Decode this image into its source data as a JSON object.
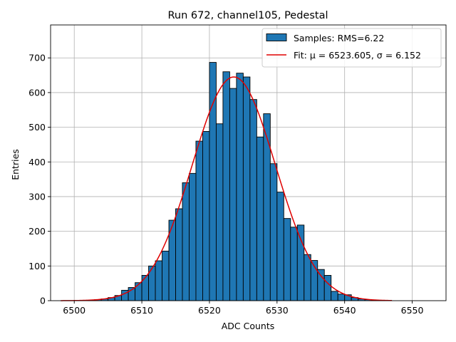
{
  "chart_data": {
    "type": "bar",
    "title": "Run 672, channel105, Pedestal",
    "xlabel": "ADC Counts",
    "ylabel": "Entries",
    "xlim": [
      6496.5,
      6555
    ],
    "ylim": [
      0,
      795
    ],
    "grid": true,
    "legend_position": "top-right",
    "x_ticks": [
      6500,
      6510,
      6520,
      6530,
      6540,
      6550
    ],
    "y_ticks": [
      0,
      100,
      200,
      300,
      400,
      500,
      600,
      700
    ],
    "bin_width": 1,
    "bin_starts": [
      6500,
      6501,
      6502,
      6503,
      6504,
      6505,
      6506,
      6507,
      6508,
      6509,
      6510,
      6511,
      6512,
      6513,
      6514,
      6515,
      6516,
      6517,
      6518,
      6519,
      6520,
      6521,
      6522,
      6523,
      6524,
      6525,
      6526,
      6527,
      6528,
      6529,
      6530,
      6531,
      6532,
      6533,
      6534,
      6535,
      6536,
      6537,
      6538,
      6539,
      6540,
      6541,
      6542,
      6543,
      6544,
      6545,
      6546
    ],
    "counts": [
      0,
      0,
      1,
      3,
      5,
      9,
      15,
      30,
      38,
      52,
      73,
      100,
      115,
      143,
      232,
      265,
      340,
      367,
      460,
      488,
      687,
      510,
      660,
      612,
      656,
      645,
      580,
      472,
      539,
      395,
      313,
      237,
      212,
      218,
      133,
      116,
      90,
      73,
      27,
      19,
      17,
      9,
      5,
      3,
      1,
      1,
      0
    ],
    "series": [
      {
        "name": "Samples: RMS=6.22",
        "color": "#1f77b4"
      },
      {
        "name": "Fit: μ = 6523.605, σ = 6.152",
        "color": "#e00000"
      }
    ],
    "fit": {
      "mu": 6523.605,
      "sigma": 6.152,
      "amplitude": 645,
      "x_range": [
        6498,
        6547
      ]
    }
  }
}
